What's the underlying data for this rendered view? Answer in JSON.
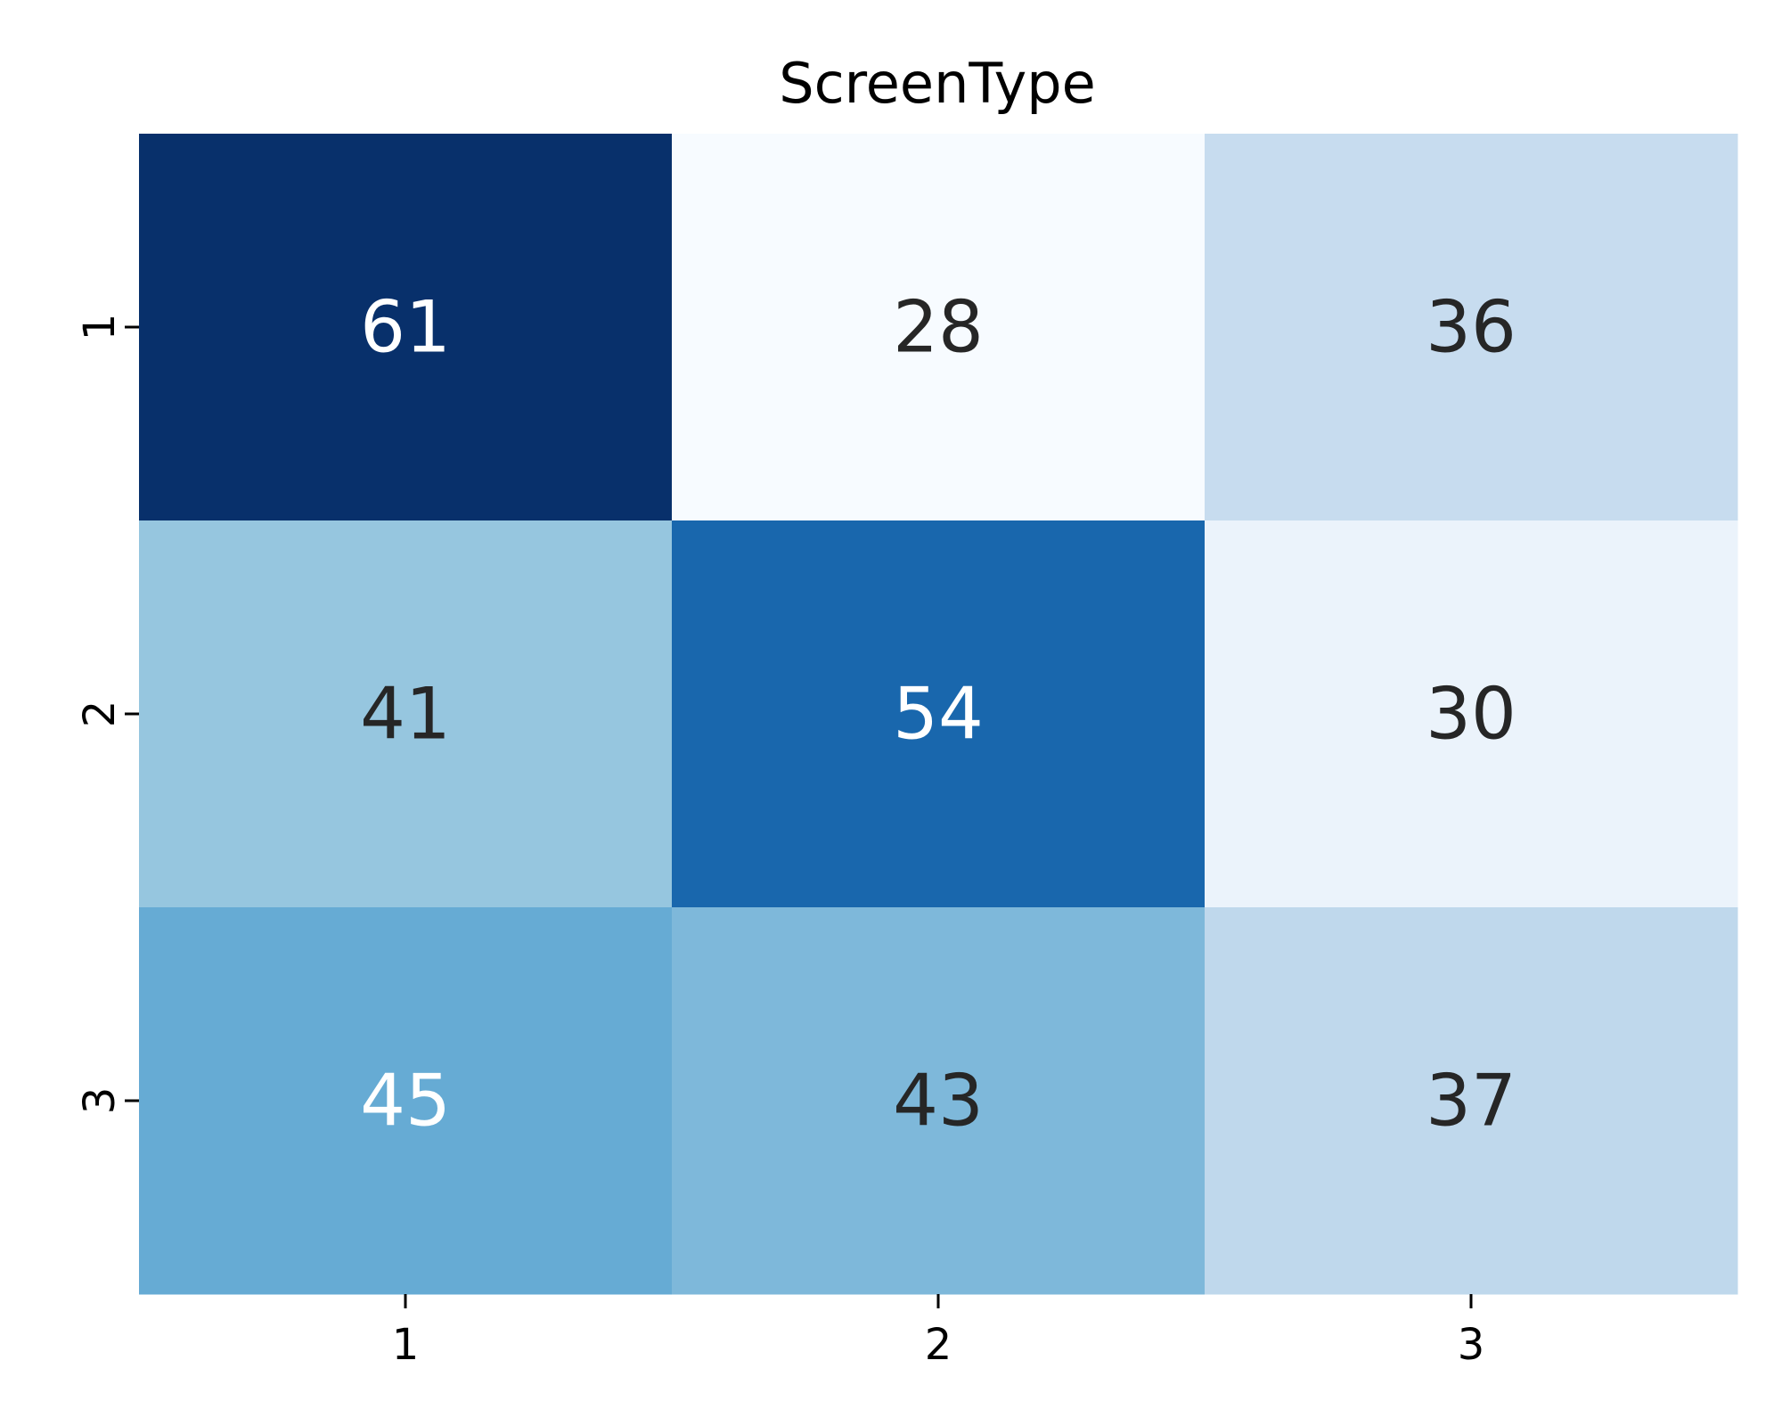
{
  "chart_data": {
    "type": "heatmap",
    "title": "ScreenType",
    "xlabel": "",
    "ylabel": "",
    "x_categories": [
      "1",
      "2",
      "3"
    ],
    "y_categories": [
      "1",
      "2",
      "3"
    ],
    "values": [
      [
        61,
        28,
        36
      ],
      [
        41,
        54,
        30
      ],
      [
        45,
        43,
        37
      ]
    ],
    "colormap": "Blues",
    "value_range": [
      28,
      61
    ],
    "colorbar": false,
    "grid": false,
    "annot_color_light": "#ffffff",
    "annot_color_dark": "#262626"
  }
}
